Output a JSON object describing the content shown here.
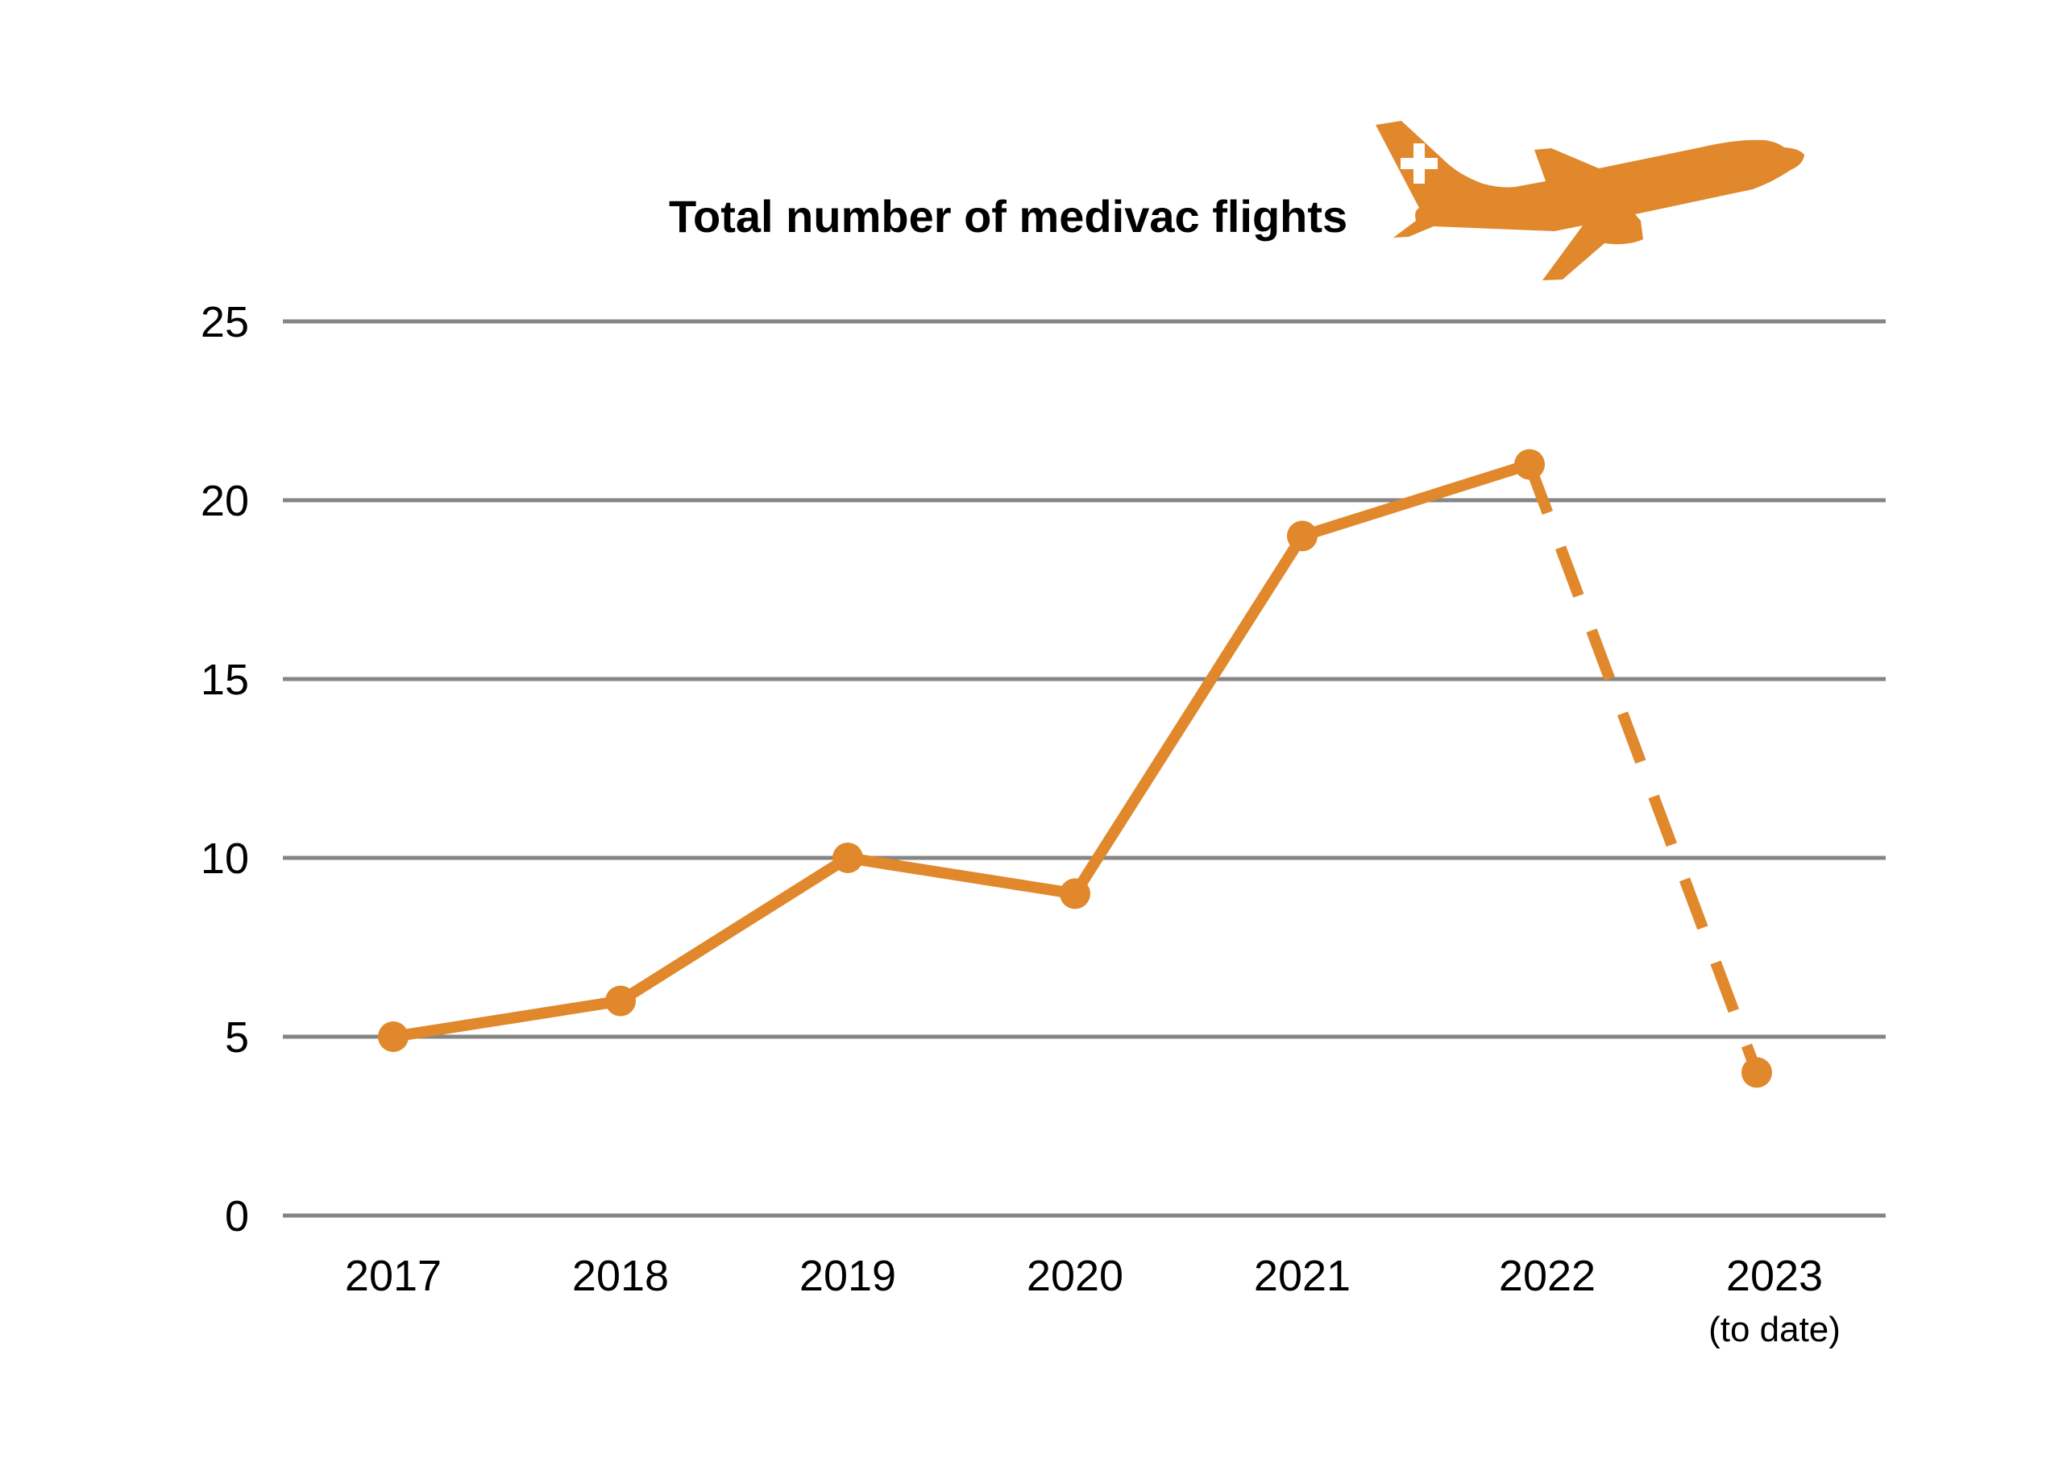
{
  "chart_data": {
    "type": "line",
    "title": "Total number of medivac flights",
    "xlabel": "",
    "ylabel": "",
    "categories": [
      "2017",
      "2018",
      "2019",
      "2020",
      "2021",
      "2022",
      "2023"
    ],
    "category_sublabels": [
      "",
      "",
      "",
      "",
      "",
      "",
      "(to date)"
    ],
    "series": [
      {
        "name": "Total number of medivac flights",
        "values": [
          5,
          6,
          10,
          9,
          19,
          21,
          4
        ],
        "dashed_from_index": 5,
        "color": "#E0882B"
      }
    ],
    "ylim": [
      0,
      25
    ],
    "yticks": [
      0,
      5,
      10,
      15,
      20,
      25
    ],
    "ytick_labels": [
      "0",
      "5",
      "10",
      "15",
      "20",
      "25"
    ],
    "grid": true,
    "legend": "none",
    "gridline_color": "#858585",
    "accent_color": "#E0882B",
    "decoration": {
      "icon": "medical-airplane-icon",
      "emblem": "white-cross-icon"
    }
  }
}
